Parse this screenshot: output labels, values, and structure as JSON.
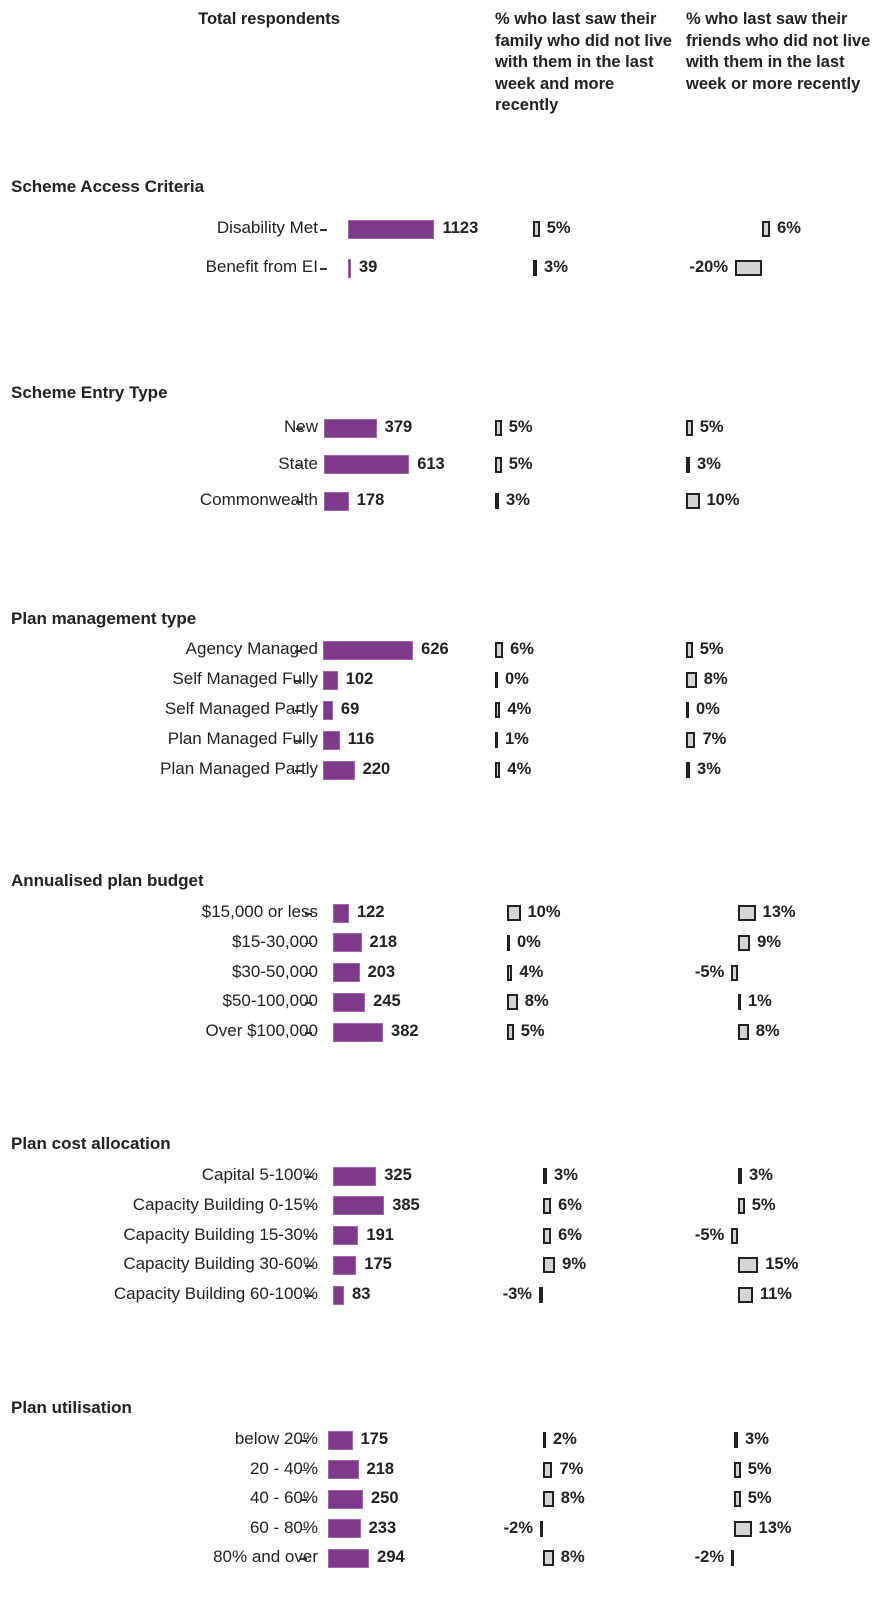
{
  "chart_data": {
    "type": "bar",
    "headers": [
      "Total respondents",
      "% who last saw their family who did not live with them in the last week and more recently",
      "% who last saw their friends who did not live with them in the last week or more recently"
    ],
    "total_color": "#7d3a88",
    "pct_color": "#d4d4d4",
    "sections": [
      {
        "title": "Scheme Access Criteria",
        "categories": [
          "Disability Met",
          "Benefit from EI"
        ],
        "totals": [
          1123,
          39
        ],
        "family": [
          5,
          3
        ],
        "family_labels": [
          "5%",
          "3%"
        ],
        "friends": [
          6,
          -20
        ],
        "friends_labels": [
          "6%",
          "-20%"
        ]
      },
      {
        "title": "Scheme Entry Type",
        "categories": [
          "New",
          "State",
          "Commonwealth"
        ],
        "totals": [
          379,
          613,
          178
        ],
        "family": [
          5,
          5,
          3
        ],
        "family_labels": [
          "5%",
          "5%",
          "3%"
        ],
        "friends": [
          5,
          3,
          10
        ],
        "friends_labels": [
          "5%",
          "3%",
          "10%"
        ]
      },
      {
        "title": "Plan management type",
        "categories": [
          "Agency Managed",
          "Self Managed Fully",
          "Self Managed Partly",
          "Plan Managed Fully",
          "Plan Managed Partly"
        ],
        "totals": [
          626,
          102,
          69,
          116,
          220
        ],
        "family": [
          6,
          0,
          4,
          1,
          4
        ],
        "family_labels": [
          "6%",
          "0%",
          "4%",
          "1%",
          "4%"
        ],
        "friends": [
          5,
          8,
          0,
          7,
          3
        ],
        "friends_labels": [
          "5%",
          "8%",
          "0%",
          "7%",
          "3%"
        ]
      },
      {
        "title": "Annualised plan budget",
        "categories": [
          "$15,000 or less",
          "$15-30,000",
          "$30-50,000",
          "$50-100,000",
          "Over $100,000"
        ],
        "totals": [
          122,
          218,
          203,
          245,
          382
        ],
        "family": [
          10,
          0,
          4,
          8,
          5
        ],
        "family_labels": [
          "10%",
          "0%",
          "4%",
          "8%",
          "5%"
        ],
        "friends": [
          13,
          9,
          -5,
          1,
          8
        ],
        "friends_labels": [
          "13%",
          "9%",
          "-5%",
          "1%",
          "8%"
        ]
      },
      {
        "title": "Plan cost allocation",
        "categories": [
          "Capital 5-100%",
          "Capacity Building 0-15%",
          "Capacity Building 15-30%",
          "Capacity Building 30-60%",
          "Capacity Building 60-100%"
        ],
        "totals": [
          325,
          385,
          191,
          175,
          83
        ],
        "family": [
          3,
          6,
          6,
          9,
          -3
        ],
        "family_labels": [
          "3%",
          "6%",
          "6%",
          "9%",
          "-3%"
        ],
        "friends": [
          3,
          5,
          -5,
          15,
          11
        ],
        "friends_labels": [
          "3%",
          "5%",
          "-5%",
          "15%",
          "11%"
        ]
      },
      {
        "title": "Plan utilisation",
        "categories": [
          "below 20%",
          "20 - 40%",
          "40 - 60%",
          "60 - 80%",
          "80% and over"
        ],
        "totals": [
          175,
          218,
          250,
          233,
          294
        ],
        "family": [
          2,
          7,
          8,
          -2,
          8
        ],
        "family_labels": [
          "2%",
          "7%",
          "8%",
          "-2%",
          "8%"
        ],
        "friends": [
          3,
          5,
          5,
          13,
          -2
        ],
        "friends_labels": [
          "3%",
          "5%",
          "5%",
          "13%",
          "-2%"
        ]
      }
    ]
  }
}
